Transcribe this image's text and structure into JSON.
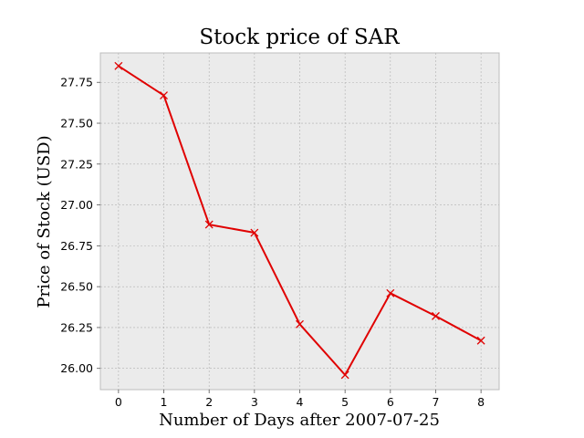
{
  "chart_data": {
    "type": "line",
    "title": "Stock price of SAR",
    "xlabel": "Number of Days after 2007-07-25",
    "ylabel": "Price of Stock (USD)",
    "x": [
      0,
      1,
      2,
      3,
      4,
      5,
      6,
      7,
      8
    ],
    "series": [
      {
        "values": [
          27.85,
          27.67,
          26.88,
          26.83,
          26.27,
          25.96,
          26.46,
          26.32,
          26.17
        ],
        "color": "#e00000",
        "marker": "x"
      }
    ],
    "xlim": [
      -0.4,
      8.4
    ],
    "ylim": [
      25.87,
      27.93
    ],
    "x_ticks": [
      0,
      1,
      2,
      3,
      4,
      5,
      6,
      7,
      8
    ],
    "x_tick_labels": [
      "0",
      "1",
      "2",
      "3",
      "4",
      "5",
      "6",
      "7",
      "8"
    ],
    "y_ticks": [
      26.0,
      26.25,
      26.5,
      26.75,
      27.0,
      27.25,
      27.5,
      27.75
    ],
    "y_tick_labels": [
      "26.00",
      "26.25",
      "26.50",
      "26.75",
      "27.00",
      "27.25",
      "27.50",
      "27.75"
    ],
    "grid": true,
    "plot_background": "#ebebeb",
    "grid_color": "#b0b0b0"
  }
}
